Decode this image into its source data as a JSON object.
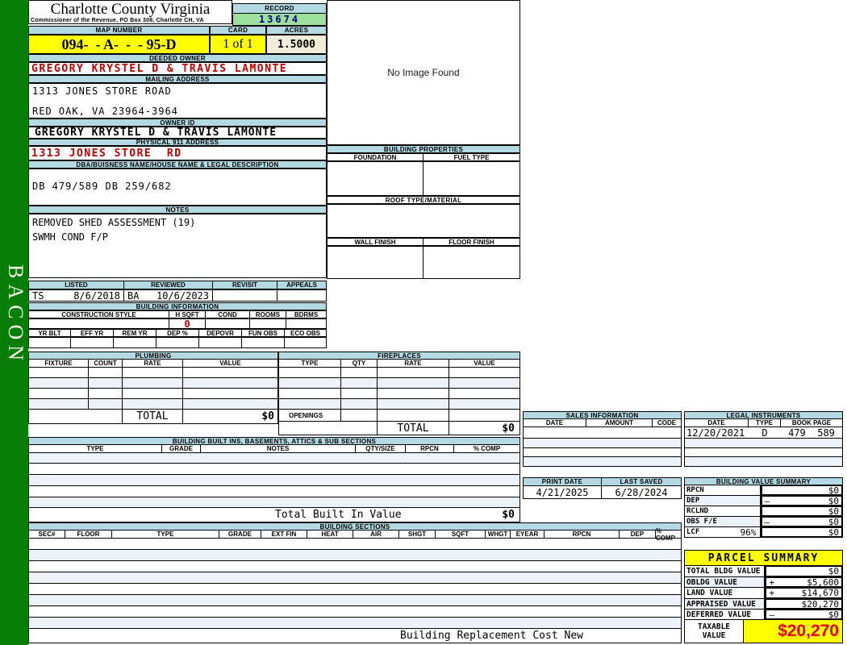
{
  "sidebar": {
    "label": "BACON"
  },
  "header": {
    "county": "Charlotte County Virginia",
    "commissioner": "Commissioner of the Revenue, PO Box 308, Charlotte CH, VA",
    "record_label": "RECORD",
    "record_value": "13674",
    "map_number_label": "MAP NUMBER",
    "map_number": "094-  - A-  -  - 95-D",
    "card_label": "CARD",
    "card": "1 of 1",
    "acres_label": "ACRES",
    "acres": "1.5000"
  },
  "owner": {
    "deeded_owner_label": "DEEDED OWNER",
    "deeded_owner": "GREGORY KRYSTEL D & TRAVIS LAMONTE",
    "mailing_address_label": "MAILING ADDRESS",
    "mailing_line1": "1313 JONES STORE ROAD",
    "mailing_line2": "RED OAK, VA 23964-3964",
    "owner_id_label": "OWNER ID",
    "owner_id": "GREGORY KRYSTEL D & TRAVIS LAMONTE",
    "physical_label": "PHYSICAL 911 ADDRESS",
    "physical": "1313 JONES STORE  RD",
    "dba_label": "DBA/BUISNESS NAME/HOUSE NAME & LEGAL DESCRIPTION",
    "dba": "DB 479/589 DB 259/682",
    "notes_label": "NOTES",
    "notes_line1": "REMOVED SHED ASSESSMENT (19)",
    "notes_line2": "SWMH COND F/P"
  },
  "image_panel": {
    "no_image_text": "No Image Found"
  },
  "building_properties": {
    "title": "BUILDING PROPERTIES",
    "foundation_label": "FOUNDATION",
    "fuel_type_label": "FUEL TYPE",
    "roof_label": "ROOF TYPE/MATERIAL",
    "wall_finish_label": "WALL FINISH",
    "floor_finish_label": "FLOOR FINISH"
  },
  "review": {
    "listed_label": "LISTED",
    "reviewed_label": "REVIEWED",
    "revisit_label": "REVISIT",
    "appeals_label": "APPEALS",
    "listed_by": "TS",
    "listed_date": "8/6/2018",
    "reviewed_by": "BA",
    "reviewed_date": "10/6/2023"
  },
  "building_information": {
    "title": "BUILDING INFORMATION",
    "row1_headers": [
      "CONSTRUCTION STYLE",
      "H SQFT",
      "COND",
      "ROOMS",
      "BDRMS"
    ],
    "h_sqft": "0",
    "row2_headers": [
      "YR BLT",
      "EFF YR",
      "REM YR",
      "DEP %",
      "DEPOVR",
      "FUN OBS",
      "ECO OBS"
    ]
  },
  "plumbing": {
    "title": "PLUMBING",
    "headers": [
      "FIXTURE",
      "COUNT",
      "RATE",
      "VALUE"
    ],
    "total_label": "TOTAL",
    "total_value": "$0"
  },
  "fireplaces": {
    "title": "FIREPLACES",
    "headers": [
      "TYPE",
      "QTY",
      "RATE",
      "VALUE"
    ],
    "openings_label": "OPENINGS",
    "total_label": "TOTAL",
    "total_value": "$0"
  },
  "built_ins": {
    "title": "BUILDING BUILT INS, BASEMENTS, ATTICS & SUB SECTIONS",
    "headers": [
      "TYPE",
      "GRADE",
      "NOTES",
      "QTY/SIZE",
      "RPCN",
      "% COMP"
    ],
    "total_label": "Total Built In Value",
    "total_value": "$0"
  },
  "building_sections": {
    "title": "BUILDING SECTIONS",
    "headers": [
      "SEC#",
      "FLOOR",
      "TYPE",
      "GRADE",
      "EXT FIN",
      "HEAT",
      "AIR",
      "SHGT",
      "SQFT",
      "WHGT",
      "EYEAR",
      "RPCN",
      "DEP",
      "% COMP"
    ],
    "footer": "Building Replacement Cost New"
  },
  "sales": {
    "title": "SALES INFORMATION",
    "headers": [
      "DATE",
      "AMOUNT",
      "CODE"
    ]
  },
  "legal": {
    "title": "LEGAL INSTRUMENTS",
    "headers": [
      "DATE",
      "TYPE",
      "BOOK PAGE"
    ],
    "rows": [
      [
        "12/20/2021",
        "D",
        "479  589"
      ]
    ]
  },
  "dates": {
    "print_date_label": "PRINT DATE",
    "print_date": "4/21/2025",
    "last_saved_label": "LAST SAVED",
    "last_saved": "6/28/2024"
  },
  "building_value_summary": {
    "title": "BUILDING VALUE SUMMARY",
    "rows": [
      {
        "label": "RPCN",
        "op": "",
        "value": "$0"
      },
      {
        "label": "DEP",
        "op": "–",
        "value": "$0"
      },
      {
        "label": "RCLND",
        "op": "",
        "value": "$0"
      },
      {
        "label": "OBS F/E",
        "op": "–",
        "value": "$0"
      },
      {
        "label": "LCF",
        "pct": "96%",
        "op": "",
        "value": "$0"
      }
    ]
  },
  "parcel_summary": {
    "title": "PARCEL SUMMARY",
    "rows": [
      {
        "label": "TOTAL BLDG VALUE",
        "op": "",
        "value": "$0"
      },
      {
        "label": "OBLDG VALUE",
        "op": "+",
        "value": "$5,600"
      },
      {
        "label": "LAND VALUE",
        "op": "+",
        "value": "$14,670"
      },
      {
        "label": "APPRAISED VALUE",
        "op": "",
        "value": "$20,270"
      },
      {
        "label": "DEFERRED VALUE",
        "op": "–",
        "value": "$0"
      }
    ],
    "taxable_label": "TAXABLE VALUE",
    "taxable_value": "$20,270"
  },
  "colors": {
    "section_header_blue": "#b3d9e3",
    "record_green": "#9ce09c",
    "highlight_yellow": "#ffff00",
    "acres_cream": "#f0ecd8",
    "alert_red": "#c00000",
    "sidebar_green": "#087d08",
    "alt_row_blue": "#edf2f9",
    "record_navy": "#000080"
  }
}
